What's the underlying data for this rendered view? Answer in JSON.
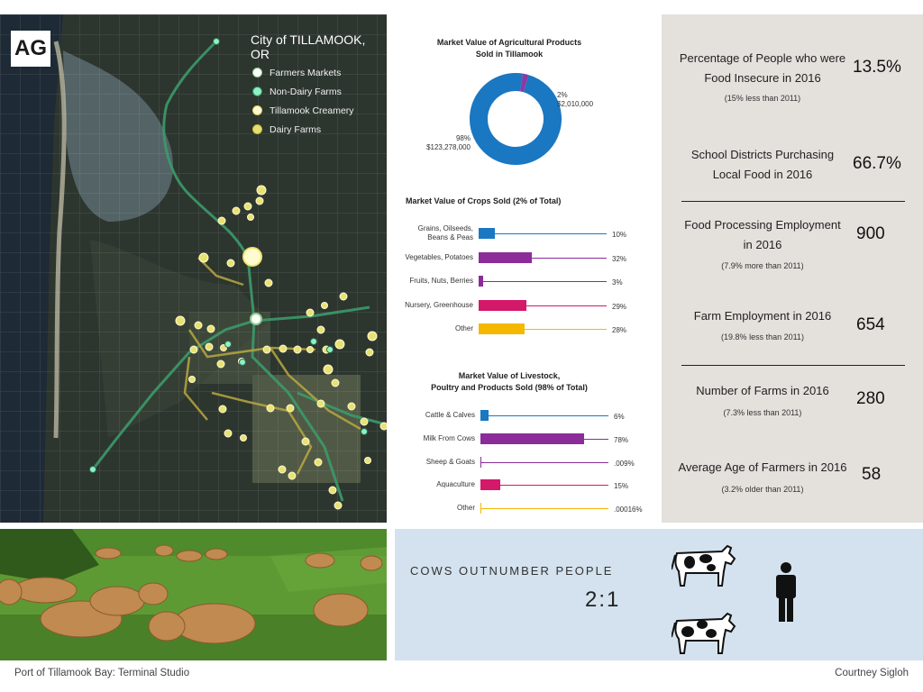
{
  "map": {
    "logo": "AG",
    "title": "City of TILLAMOOK, OR",
    "legend": [
      {
        "label": "Farmers Markets",
        "color": "#ffffff",
        "border": "#8fcf8f",
        "icon": "circle-icon"
      },
      {
        "label": "Non-Dairy Farms",
        "color": "#8ff0c4",
        "border": "#2e8a5c",
        "icon": "circle-icon"
      },
      {
        "label": "Tillamook Creamery",
        "color": "#fffbd0",
        "border": "#e0d060",
        "icon": "circle-icon"
      },
      {
        "label": "Dairy Farms",
        "color": "#e6e070",
        "border": "#c8b840",
        "icon": "circle-icon"
      }
    ]
  },
  "charts": [
    {
      "type": "pie",
      "title": "Market Value of Agricultural Products\nSold in Tillamook",
      "slices": [
        {
          "percent_label": "98%",
          "amount": "$123,278,000",
          "value": 98,
          "color": "#1a77c2"
        },
        {
          "percent_label": "2%",
          "amount": "$2,010,000",
          "value": 2,
          "color": "#8b3aa0"
        }
      ]
    },
    {
      "type": "bar",
      "title": "Market Value of Crops Sold (2% of Total)",
      "categories": [
        "Grains, Oilseeds,\nBeans & Peas",
        "Vegetables, Potatoes",
        "Fruits, Nuts, Berries",
        "Nursery, Greenhouse",
        "Other"
      ],
      "values": [
        10,
        32,
        3,
        29,
        28
      ],
      "value_labels": [
        "10%",
        "32%",
        "3%",
        "29%",
        "28%"
      ],
      "colors": [
        "#1a77c2",
        "#8b2c99",
        "#8b2c99",
        "#d4186a",
        "#f5b800"
      ],
      "xlim": [
        0,
        100
      ]
    },
    {
      "type": "bar",
      "title": "Market Value of Livestock,\nPoultry and Products Sold (98% of Total)",
      "categories": [
        "Cattle & Calves",
        "Milk From Cows",
        "Sheep & Goats",
        "Aquaculture",
        "Other"
      ],
      "values": [
        6,
        78,
        0.009,
        15,
        0.00016
      ],
      "value_labels": [
        "6%",
        "78%",
        ".009%",
        "15%",
        ".00016%"
      ],
      "colors": [
        "#1a77c2",
        "#8b2c99",
        "#8b2c99",
        "#d4186a",
        "#f5b800"
      ],
      "xlim": [
        0,
        100
      ]
    }
  ],
  "stats": [
    {
      "label": "Percentage of People who were\nFood Insecure in 2016",
      "sub": "(15% less than 2011)",
      "value": "13.5%"
    },
    {
      "label": "School Districts Purchasing\nLocal Food in 2016",
      "sub": "",
      "value": "66.7%"
    },
    {
      "label": "Food Processing Employment\nin 2016",
      "sub": "(7.9% more than 2011)",
      "value": "900"
    },
    {
      "label": "Farm Employment in 2016",
      "sub": "(19.8% less than 2011)",
      "value": "654"
    },
    {
      "label": "Number of Farms in 2016",
      "sub": "(7.3% less than 2011)",
      "value": "280"
    },
    {
      "label": "Average Age of Farmers in 2016",
      "sub": "(3.2% older than 2011)",
      "value": "58"
    }
  ],
  "cows": {
    "heading": "COWS OUTNUMBER PEOPLE",
    "ratio": "2:1",
    "icons": [
      "cow-icon",
      "cow-icon",
      "person-icon"
    ]
  },
  "footer": {
    "left": "Port of Tillamook Bay: Terminal Studio",
    "right": "Courtney Sigloh"
  }
}
